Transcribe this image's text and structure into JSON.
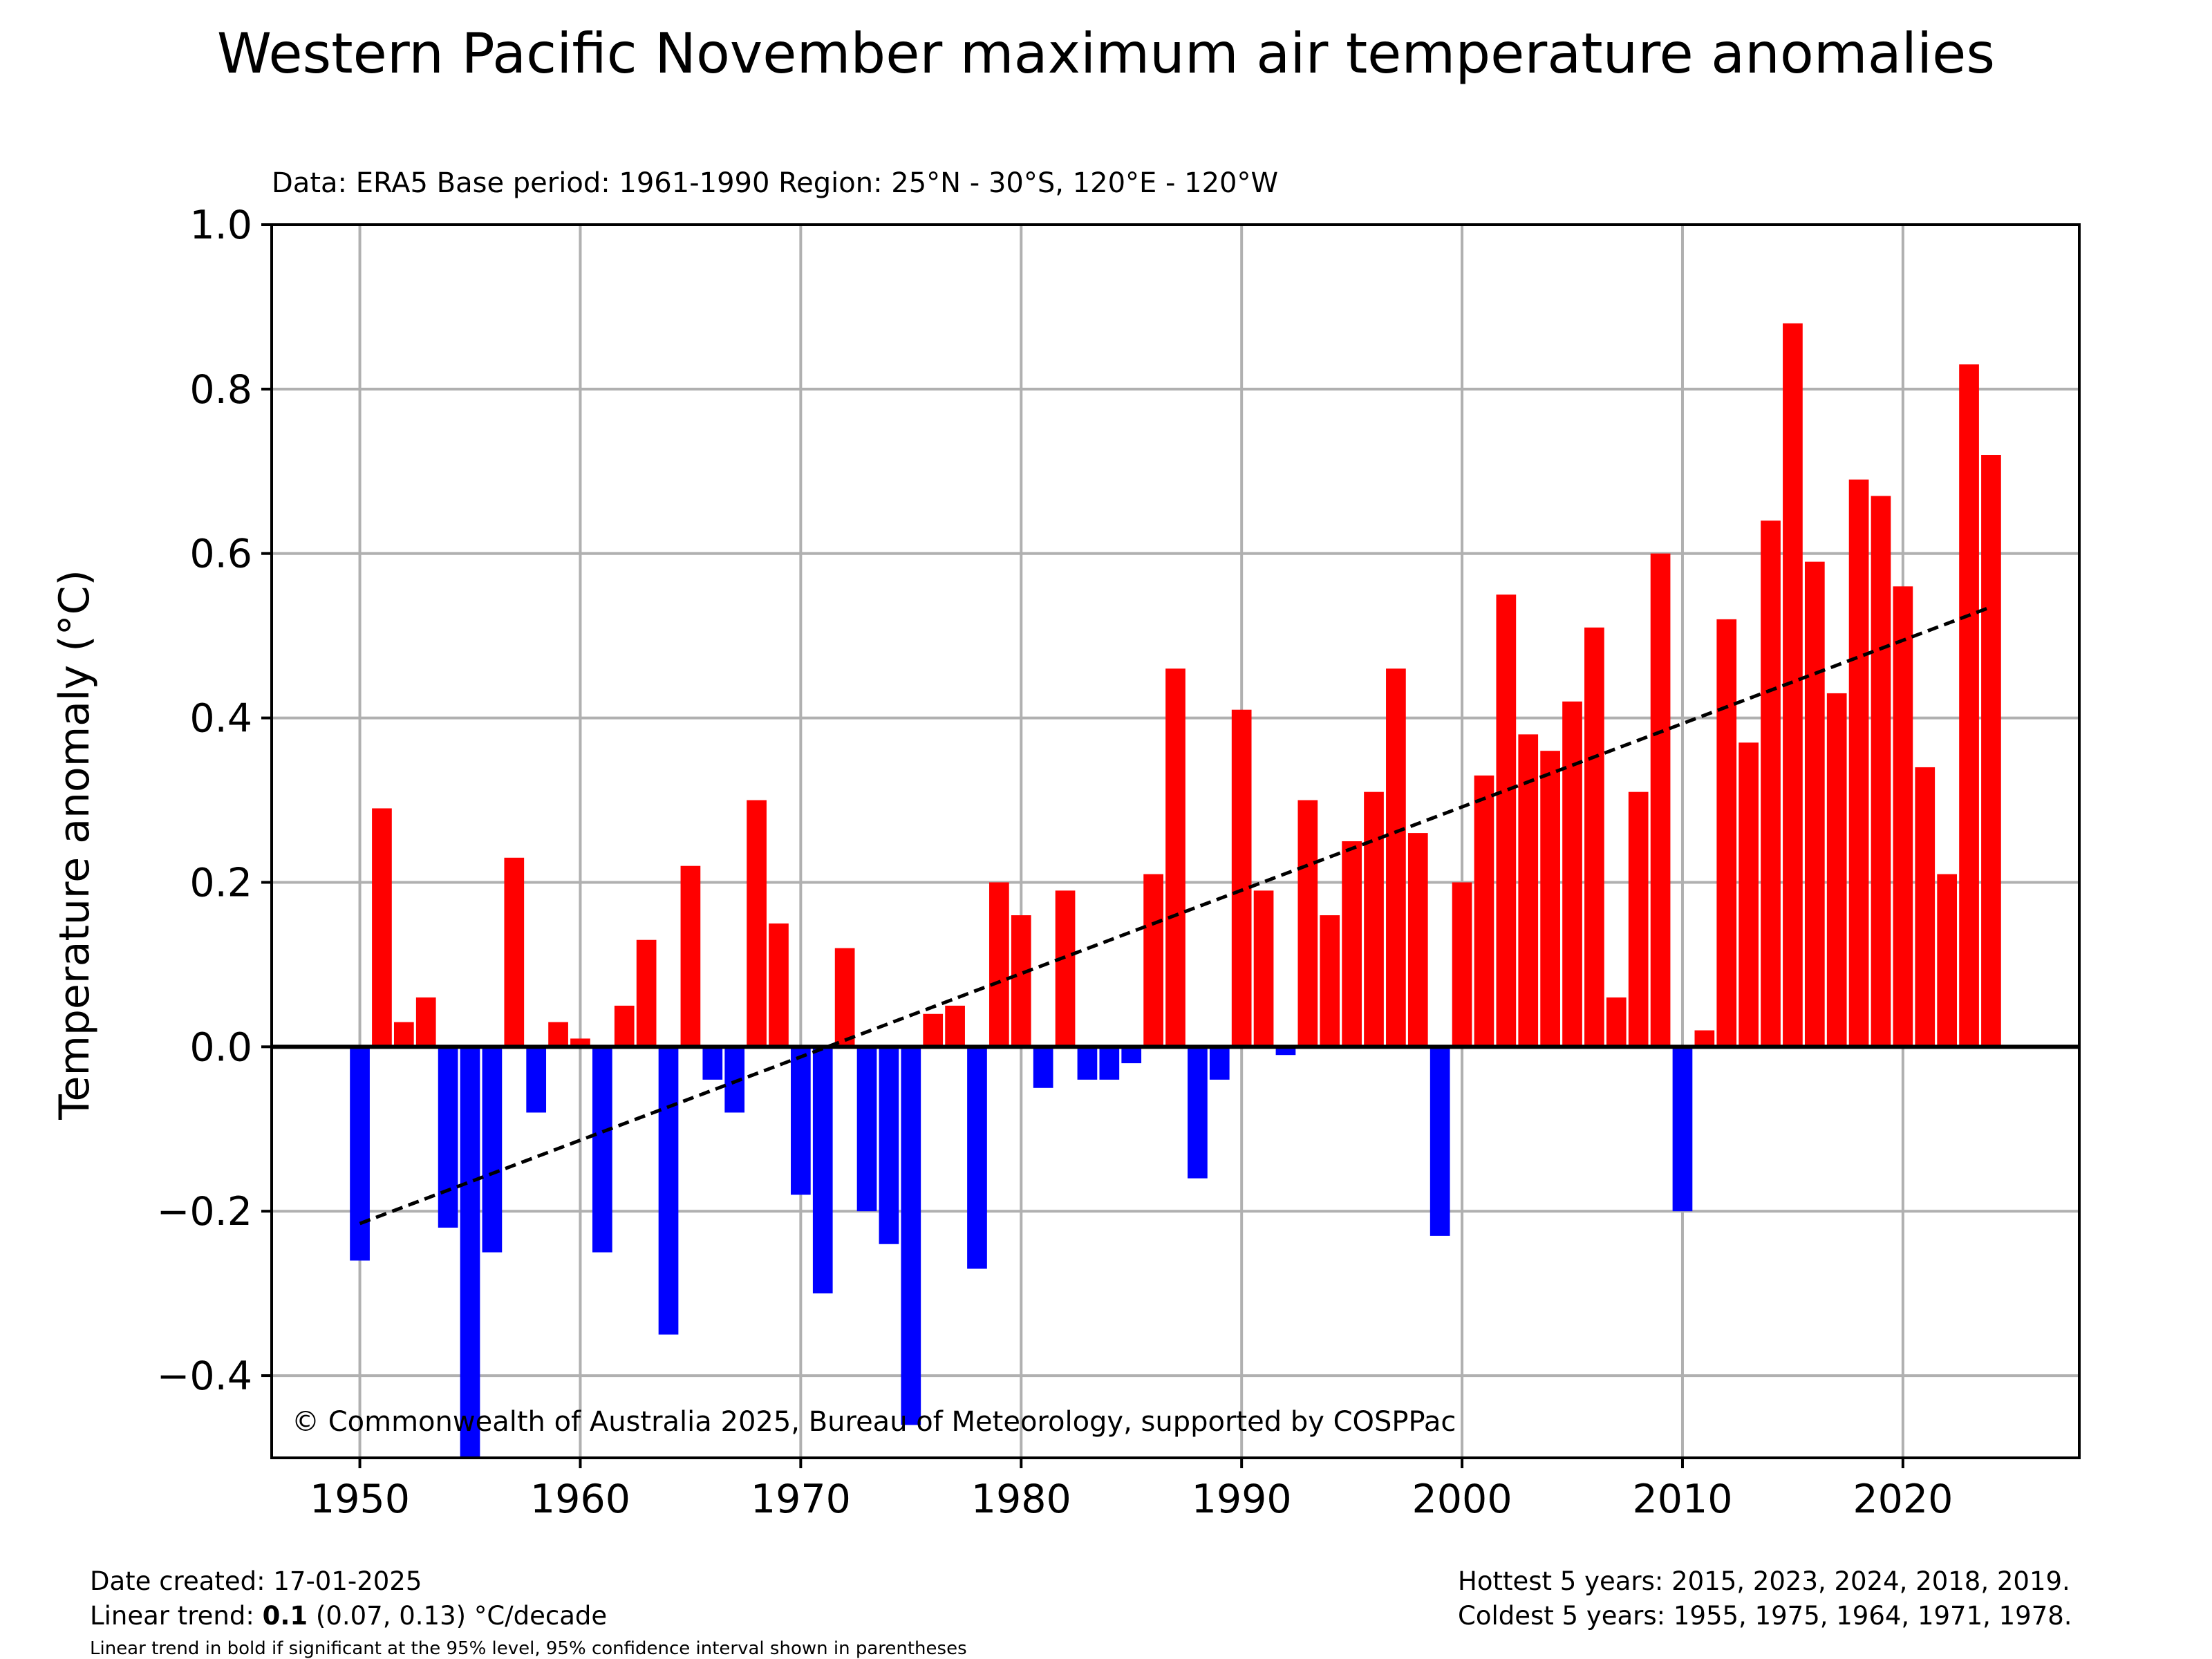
{
  "chart_data": {
    "type": "bar",
    "title": "Western Pacific November maximum air temperature anomalies",
    "subtitle": "Data: ERA5  Base period: 1961-1990  Region: 25°N - 30°S, 120°E - 120°W",
    "xlabel": "",
    "ylabel": "Temperature anomaly (°C)",
    "xlim": [
      1946,
      2028
    ],
    "ylim": [
      -0.5,
      1.0
    ],
    "x_ticks": [
      1950,
      1960,
      1970,
      1980,
      1990,
      2000,
      2010,
      2020
    ],
    "x_tick_labels": [
      "1950",
      "1960",
      "1970",
      "1980",
      "1990",
      "2000",
      "2010",
      "2020"
    ],
    "y_ticks": [
      -0.4,
      -0.2,
      0.0,
      0.2,
      0.4,
      0.6,
      0.8,
      1.0
    ],
    "y_tick_labels": [
      "−0.4",
      "−0.2",
      "0.0",
      "0.2",
      "0.4",
      "0.6",
      "0.8",
      "1.0"
    ],
    "grid": true,
    "colors": {
      "positive": "#ff0000",
      "negative": "#0000ff",
      "trend": "#000000",
      "grid": "#b0b0b0"
    },
    "years": [
      1950,
      1951,
      1952,
      1953,
      1954,
      1955,
      1956,
      1957,
      1958,
      1959,
      1960,
      1961,
      1962,
      1963,
      1964,
      1965,
      1966,
      1967,
      1968,
      1969,
      1970,
      1971,
      1972,
      1973,
      1974,
      1975,
      1976,
      1977,
      1978,
      1979,
      1980,
      1981,
      1982,
      1983,
      1984,
      1985,
      1986,
      1987,
      1988,
      1989,
      1990,
      1991,
      1992,
      1993,
      1994,
      1995,
      1996,
      1997,
      1998,
      1999,
      2000,
      2001,
      2002,
      2003,
      2004,
      2005,
      2006,
      2007,
      2008,
      2009,
      2010,
      2011,
      2012,
      2013,
      2014,
      2015,
      2016,
      2017,
      2018,
      2019,
      2020,
      2021,
      2022,
      2023,
      2024
    ],
    "values": [
      -0.26,
      0.29,
      0.03,
      0.06,
      -0.22,
      -0.5,
      -0.25,
      0.23,
      -0.08,
      0.03,
      0.01,
      -0.25,
      0.05,
      0.13,
      -0.35,
      0.22,
      -0.04,
      -0.08,
      0.3,
      0.15,
      -0.18,
      -0.3,
      0.12,
      -0.2,
      -0.24,
      -0.46,
      0.04,
      0.05,
      -0.27,
      0.2,
      0.16,
      -0.05,
      0.19,
      -0.04,
      -0.04,
      -0.02,
      0.21,
      0.46,
      -0.16,
      -0.04,
      0.41,
      0.19,
      -0.01,
      0.3,
      0.16,
      0.25,
      0.31,
      0.46,
      0.26,
      -0.23,
      0.2,
      0.33,
      0.55,
      0.38,
      0.36,
      0.42,
      0.51,
      0.06,
      0.31,
      0.6,
      -0.2,
      0.02,
      0.52,
      0.37,
      0.64,
      0.88,
      0.59,
      0.43,
      0.69,
      0.67,
      0.56,
      0.34,
      0.21,
      0.83,
      0.72
    ],
    "trend": {
      "x": [
        1950,
        2024
      ],
      "y": [
        -0.215,
        0.535
      ]
    },
    "annotation": "© Commonwealth of Australia 2025, Bureau of Meteorology, supported by COSPPac"
  },
  "footer": {
    "date_created": "Date created: 17-01-2025",
    "trend_prefix": "Linear trend: ",
    "trend_value": "0.1",
    "trend_suffix": " (0.07, 0.13) °C/decade",
    "note": "Linear trend in bold if significant at the 95% level, 95% confidence interval shown in parentheses",
    "hottest": "Hottest 5 years: 2015, 2023, 2024, 2018, 2019.",
    "coldest": "Coldest 5 years: 1955, 1975, 1964, 1971, 1978."
  }
}
